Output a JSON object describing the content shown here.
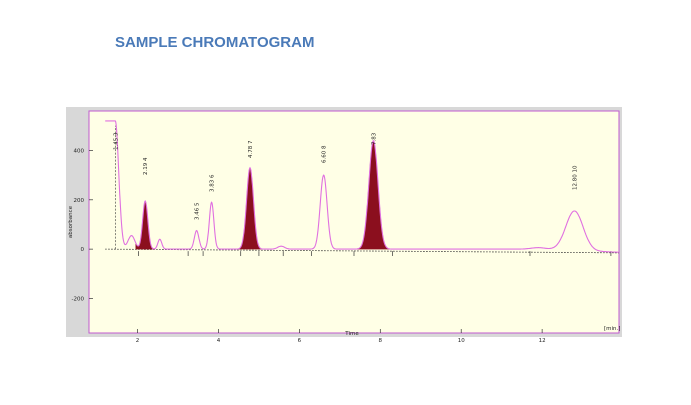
{
  "page": {
    "title": "SAMPLE CHROMATOGRAM"
  },
  "chart_data": {
    "type": "line",
    "xlabel": "Time",
    "ylabel": "absorbance",
    "x_unit_label": "[min.]",
    "xlim": [
      0.8,
      13.9
    ],
    "ylim": [
      -340,
      560
    ],
    "x_ticks": [
      2,
      4,
      6,
      8,
      10,
      12
    ],
    "y_ticks": [
      -200,
      0,
      200,
      400
    ],
    "grid": false,
    "colors": {
      "plot_bg": "#ffffe6",
      "frame": "#c05ad0",
      "trace": "#e070e0",
      "fill": "#8b0f1e",
      "baseline": "#333333"
    },
    "peaks": [
      {
        "label": "1.45  3",
        "rt": 1.45,
        "height": 520,
        "width": 0.07,
        "filled": false
      },
      {
        "label": "2.19  4",
        "rt": 2.19,
        "height": 195,
        "width": 0.09,
        "filled": true
      },
      {
        "label": "3.46  5",
        "rt": 3.46,
        "height": 75,
        "width": 0.08,
        "filled": false
      },
      {
        "label": "3.83  6",
        "rt": 3.83,
        "height": 190,
        "width": 0.08,
        "filled": false
      },
      {
        "label": "4.78  7",
        "rt": 4.78,
        "height": 330,
        "width": 0.12,
        "filled": true
      },
      {
        "label": "6.60  8",
        "rt": 6.6,
        "height": 300,
        "width": 0.12,
        "filled": false
      },
      {
        "label": "7.83",
        "rt": 7.83,
        "height": 440,
        "width": 0.16,
        "filled": true
      },
      {
        "label": "12.80  10",
        "rt": 12.8,
        "height": 160,
        "width": 0.3,
        "filled": false
      }
    ]
  }
}
